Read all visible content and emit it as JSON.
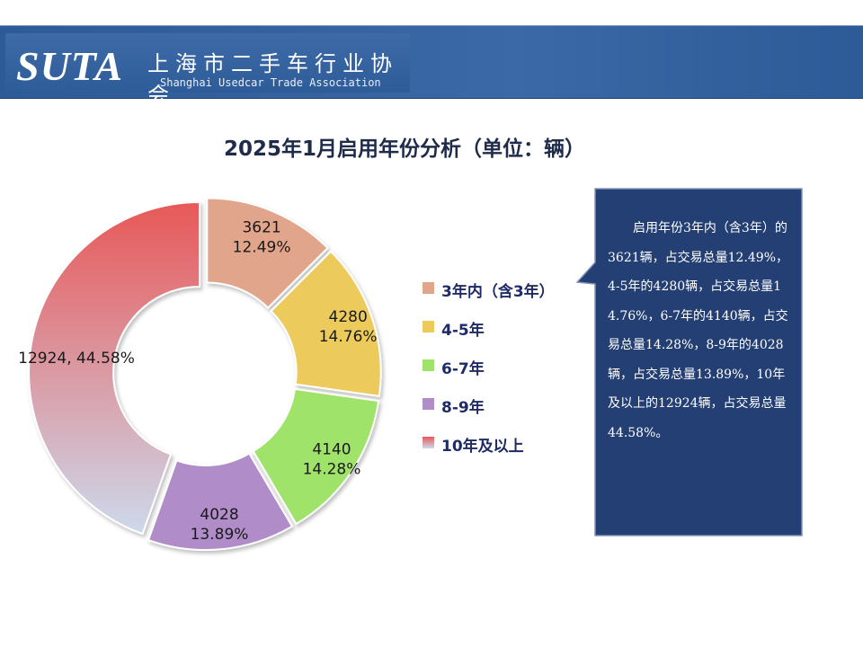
{
  "logo": {
    "brand": "SUTA",
    "name_cn": "上海市二手车行业协会",
    "name_en": "Shanghai Usedcar Trade Association"
  },
  "colors": {
    "header_bg": "#2f5e9c",
    "callout_bg": "#243f73",
    "title": "#1e2b4a"
  },
  "chart_data": {
    "type": "pie",
    "donut": true,
    "title": "2025年1月启用年份分析（单位：辆）",
    "unit": "辆",
    "categories": [
      "3年内（含3年）",
      "4-5年",
      "6-7年",
      "8-9年",
      "10年及以上"
    ],
    "values": [
      3621,
      4280,
      4140,
      4028,
      12924
    ],
    "percentages": [
      "12.49%",
      "14.76%",
      "14.28%",
      "13.89%",
      "44.58%"
    ],
    "data_labels": [
      [
        "3621",
        "12.49%"
      ],
      [
        "4280",
        "14.76%"
      ],
      [
        "4140",
        "14.28%"
      ],
      [
        "4028",
        "13.89%"
      ],
      [
        "12924, 44.58%"
      ]
    ],
    "colors": [
      "#e0a58a",
      "#eccb5c",
      "#9fe36a",
      "#b08cc9",
      "#e85858"
    ],
    "gradient_end": "#cdd9ec",
    "legend_position": "right"
  },
  "callout": {
    "text": "启用年份3年内（含3年）的3621辆，占交易总量12.49%，4-5年的4280辆，占交易总量14.76%，6-7年的4140辆，占交易总量14.28%，8-9年的4028辆，占交易总量13.89%，10年及以上的12924辆，占交易总量44.58%。"
  }
}
